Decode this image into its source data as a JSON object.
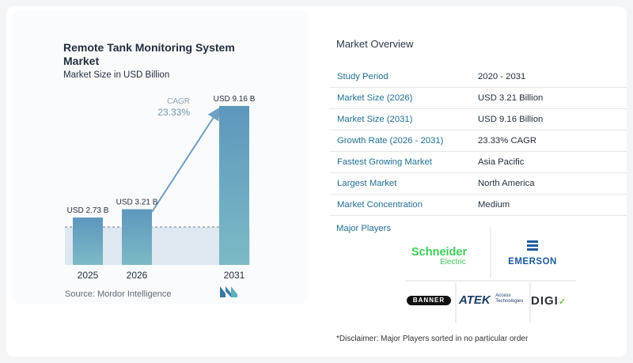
{
  "chart": {
    "title": "Remote Tank Monitoring System Market",
    "subtitle": "Market Size in USD Billion",
    "cagr_label": "CAGR",
    "cagr_value": "23.33%",
    "source": "Source:  Mordor Intelligence"
  },
  "chart_data": {
    "type": "bar",
    "title": "Remote Tank Monitoring System Market",
    "subtitle": "Market Size in USD Billion",
    "categories": [
      "2025",
      "2026",
      "2031"
    ],
    "values": [
      2.73,
      3.21,
      9.16
    ],
    "data_labels": [
      "USD 2.73 B",
      "USD 3.21 B",
      "USD 9.16 B"
    ],
    "annotation": "CAGR 23.33%",
    "grid": false
  },
  "overview": {
    "title": "Market Overview",
    "rows": [
      {
        "key": "Study Period",
        "value": "2020 - 2031"
      },
      {
        "key": "Market Size (2026)",
        "value": "USD 3.21 Billion"
      },
      {
        "key": "Market Size (2031)",
        "value": "USD 9.16 Billion"
      },
      {
        "key": "Growth Rate (2026 - 2031)",
        "value": "23.33% CAGR"
      },
      {
        "key": "Fastest Growing Market",
        "value": "Asia Pacific"
      },
      {
        "key": "Largest Market",
        "value": "North America"
      },
      {
        "key": "Market Concentration",
        "value": "Medium"
      }
    ]
  },
  "players": {
    "title": "Major Players",
    "schneider_top": "Schneider",
    "schneider_bottom": "Electric",
    "emerson": "EMERSON",
    "banner": "BANNER",
    "atek": "ATEK",
    "atek_sub1": "Access",
    "atek_sub2": "Technologies",
    "digi": "DIGI"
  },
  "disclaimer": "*Disclaimer: Major Players sorted in no particular order",
  "colors": {
    "bar_top": "#5e97bd",
    "bar_bottom": "#7cbac6",
    "accent": "#1e6e93"
  }
}
